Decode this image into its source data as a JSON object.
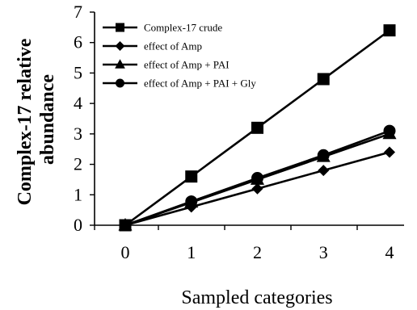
{
  "chart_data": {
    "type": "line",
    "x": [
      0,
      1,
      2,
      3,
      4
    ],
    "xlabel": "Sampled categories",
    "ylabel": "Complex-17 relative abundance",
    "ylabel_lines": [
      "Complex-17 relative",
      "abundance"
    ],
    "xlim": [
      0,
      4
    ],
    "ylim": [
      0,
      7
    ],
    "xticks": [
      "0",
      "1",
      "2",
      "3",
      "4"
    ],
    "yticks": [
      "0",
      "1",
      "2",
      "3",
      "4",
      "5",
      "6",
      "7"
    ],
    "grid": false,
    "legend_position": "top-left",
    "series": [
      {
        "name": "Complex-17 crude",
        "marker": "square",
        "values": [
          0,
          1.6,
          3.2,
          4.8,
          6.4
        ]
      },
      {
        "name": "effect of Amp",
        "marker": "diamond",
        "values": [
          0,
          0.6,
          1.2,
          1.8,
          2.4
        ]
      },
      {
        "name": "effect of Amp + PAI",
        "marker": "triangle",
        "values": [
          0,
          0.75,
          1.5,
          2.25,
          3.0
        ]
      },
      {
        "name": "effect of Amp + PAI + Gly",
        "marker": "circle",
        "values": [
          0,
          0.78,
          1.55,
          2.3,
          3.1
        ]
      }
    ],
    "line_color": "#000000"
  }
}
